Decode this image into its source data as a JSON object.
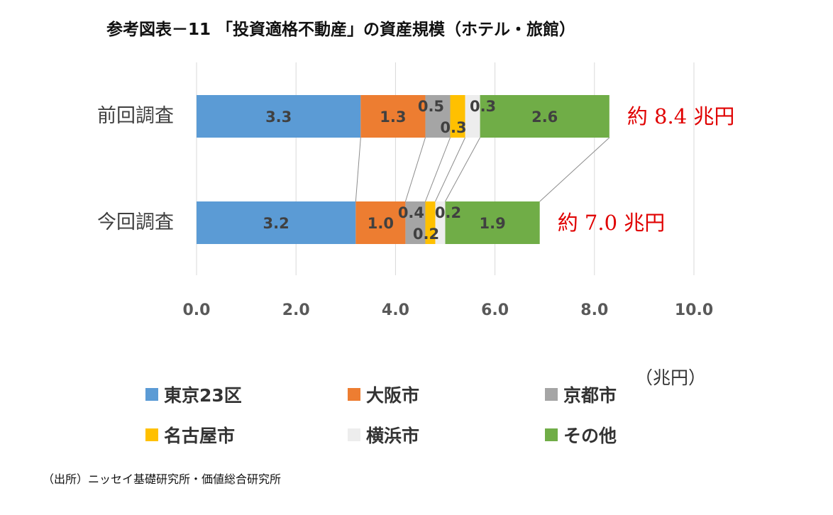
{
  "title": "参考図表－11 「投資適格不動産」の資産規模（ホテル・旅館）",
  "unit_label": "（兆円）",
  "source": "（出所）ニッセイ基礎研究所・価値総合研究所",
  "chart_data": {
    "type": "bar",
    "orientation": "horizontal",
    "stacked": true,
    "categories": [
      "前回調査",
      "今回調査"
    ],
    "series": [
      {
        "name": "東京23区",
        "values": [
          3.3,
          3.2
        ],
        "color": "#5b9bd5"
      },
      {
        "name": "大阪市",
        "values": [
          1.3,
          1.0
        ],
        "color": "#ed7d31"
      },
      {
        "name": "京都市",
        "values": [
          0.5,
          0.4
        ],
        "color": "#a5a5a5"
      },
      {
        "name": "名古屋市",
        "values": [
          0.3,
          0.2
        ],
        "color": "#ffc000"
      },
      {
        "name": "横浜市",
        "values": [
          0.3,
          0.2
        ],
        "color": "#ededed"
      },
      {
        "name": "その他",
        "values": [
          2.6,
          1.9
        ],
        "color": "#70ad47"
      }
    ],
    "totals": [
      "約 8.4 兆円",
      "約 7.0 兆円"
    ],
    "total_color": "#e00000",
    "xlim": [
      0,
      10
    ],
    "xticks": [
      "0.0",
      "2.0",
      "4.0",
      "6.0",
      "8.0",
      "10.0"
    ],
    "grid": true,
    "series_lines": true,
    "legend_position": "bottom"
  }
}
